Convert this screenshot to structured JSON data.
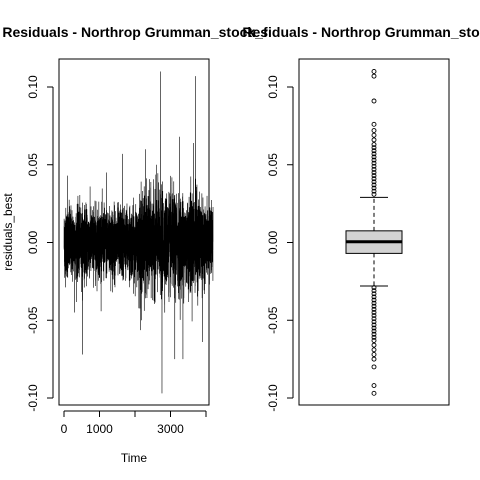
{
  "chart_data": [
    {
      "type": "line",
      "title": "Residuals - Northrop Grumman_stock_f",
      "xlabel": "Time",
      "ylabel": "residuals_best",
      "xlim": [
        0,
        4250
      ],
      "ylim": [
        -0.105,
        0.12
      ],
      "x_ticks": [
        0,
        1000,
        3000
      ],
      "x_tick_labels": [
        "0",
        "1000",
        "3000"
      ],
      "x_unlabeled_ticks": [
        2000,
        4000
      ],
      "y_ticks": [
        -0.1,
        -0.05,
        0.0,
        0.05,
        0.1
      ],
      "y_tick_labels": [
        "-0.10",
        "-0.05",
        "0.00",
        "0.05",
        "0.10"
      ],
      "n_points": 4200,
      "grid": false,
      "line_color": "#000000",
      "series": [
        {
          "values_summary": "daily residuals, mostly within ±0.03, with spikes to +0.11 and -0.097",
          "notable_points": [
            {
              "x": 100,
              "y": 0.043
            },
            {
              "x": 300,
              "y": -0.045
            },
            {
              "x": 520,
              "y": -0.072
            },
            {
              "x": 1200,
              "y": 0.045
            },
            {
              "x": 1650,
              "y": 0.057
            },
            {
              "x": 2180,
              "y": -0.05
            },
            {
              "x": 2300,
              "y": 0.06
            },
            {
              "x": 2600,
              "y": 0.05
            },
            {
              "x": 2720,
              "y": 0.11
            },
            {
              "x": 2760,
              "y": -0.097
            },
            {
              "x": 3120,
              "y": -0.075
            },
            {
              "x": 3250,
              "y": 0.068
            },
            {
              "x": 3350,
              "y": -0.075
            },
            {
              "x": 3650,
              "y": 0.064
            },
            {
              "x": 3700,
              "y": 0.107
            },
            {
              "x": 3900,
              "y": -0.064
            }
          ]
        }
      ]
    },
    {
      "type": "boxplot",
      "title": "Residuals - Northrop Grumman_stock_f",
      "xlabel": "",
      "ylabel": "",
      "ylim": [
        -0.105,
        0.12
      ],
      "y_ticks": [
        -0.1,
        -0.05,
        0.0,
        0.05,
        0.1
      ],
      "y_tick_labels": [
        "-0.10",
        "-0.05",
        "0.00",
        "0.05",
        "0.10"
      ],
      "box_fill": "#d3d3d3",
      "stats": {
        "min_whisker": -0.028,
        "q1": -0.007,
        "median": 0.0005,
        "q3": 0.0075,
        "max_whisker": 0.029
      },
      "outliers_high": [
        0.031,
        0.033,
        0.035,
        0.037,
        0.039,
        0.041,
        0.043,
        0.045,
        0.047,
        0.049,
        0.051,
        0.053,
        0.055,
        0.057,
        0.059,
        0.061,
        0.063,
        0.066,
        0.069,
        0.072,
        0.076,
        0.091,
        0.107,
        0.11
      ],
      "outliers_low": [
        -0.029,
        -0.031,
        -0.033,
        -0.035,
        -0.037,
        -0.039,
        -0.041,
        -0.043,
        -0.045,
        -0.047,
        -0.049,
        -0.051,
        -0.053,
        -0.055,
        -0.057,
        -0.059,
        -0.061,
        -0.063,
        -0.066,
        -0.069,
        -0.072,
        -0.075,
        -0.08,
        -0.092,
        -0.097
      ]
    }
  ]
}
